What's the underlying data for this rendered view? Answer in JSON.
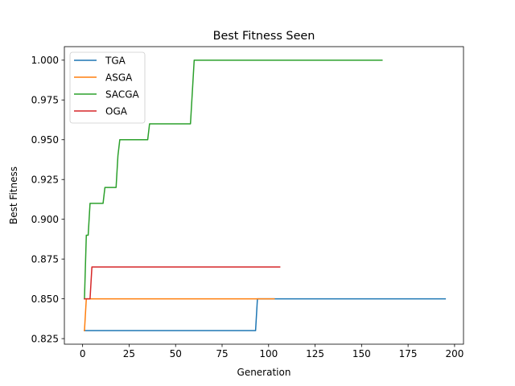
{
  "chart_data": {
    "type": "line",
    "title": "Best Fitness Seen",
    "xlabel": "Generation",
    "ylabel": "Best Fitness",
    "xlim": [
      -9.8,
      204.8
    ],
    "ylim": [
      0.8215,
      1.0085
    ],
    "xticks": [
      0,
      25,
      50,
      75,
      100,
      125,
      150,
      175,
      200
    ],
    "xtick_labels": [
      "0",
      "25",
      "50",
      "75",
      "100",
      "125",
      "150",
      "175",
      "200"
    ],
    "yticks": [
      0.825,
      0.85,
      0.875,
      0.9,
      0.925,
      0.95,
      0.975,
      1.0
    ],
    "ytick_labels": [
      "0.825",
      "0.850",
      "0.875",
      "0.900",
      "0.925",
      "0.950",
      "0.975",
      "1.000"
    ],
    "grid": false,
    "legend_position": "top-left",
    "series": [
      {
        "name": "TGA",
        "color": "#1f77b4",
        "x": [
          1,
          93,
          94,
          195
        ],
        "y": [
          0.83,
          0.83,
          0.85,
          0.85
        ]
      },
      {
        "name": "ASGA",
        "color": "#ff7f0e",
        "x": [
          1,
          2,
          103
        ],
        "y": [
          0.83,
          0.85,
          0.85
        ]
      },
      {
        "name": "SACGA",
        "color": "#2ca02c",
        "x": [
          1,
          2,
          3,
          4,
          11,
          12,
          18,
          19,
          20,
          35,
          36,
          58,
          60,
          161
        ],
        "y": [
          0.85,
          0.89,
          0.89,
          0.91,
          0.91,
          0.92,
          0.92,
          0.94,
          0.95,
          0.95,
          0.96,
          0.96,
          1.0,
          1.0
        ]
      },
      {
        "name": "OGA",
        "color": "#d62728",
        "x": [
          1,
          4,
          5,
          106
        ],
        "y": [
          0.85,
          0.85,
          0.87,
          0.87
        ]
      }
    ]
  }
}
